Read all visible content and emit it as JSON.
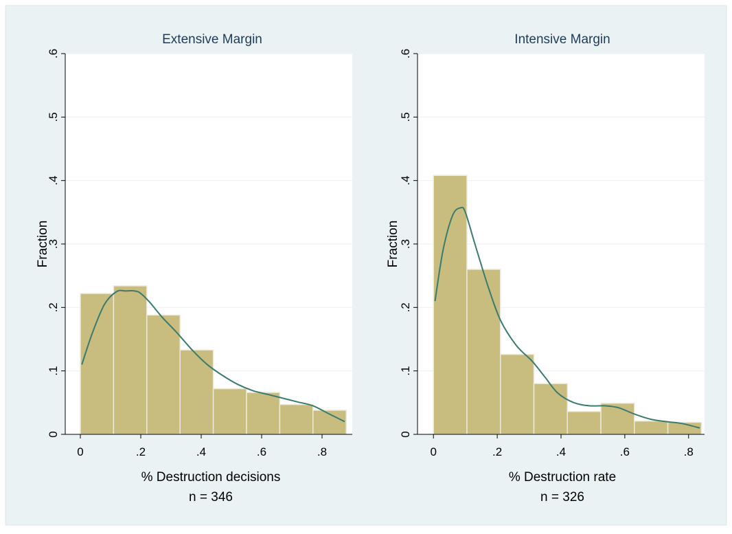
{
  "chart_data": [
    {
      "type": "bar",
      "title": "Extensive Margin",
      "xlabel": "% Destruction decisions",
      "ylabel": "Fraction",
      "note": "n = 346",
      "xlim": [
        -0.05,
        0.9
      ],
      "ylim": [
        0,
        0.6
      ],
      "xticks": [
        0,
        0.2,
        0.4,
        0.6,
        0.8
      ],
      "xtick_labels": [
        "0",
        ".2",
        ".4",
        ".6",
        ".8"
      ],
      "yticks": [
        0,
        0.1,
        0.2,
        0.3,
        0.4,
        0.5,
        0.6
      ],
      "ytick_labels": [
        "0",
        ".1",
        ".2",
        ".3",
        ".4",
        ".5",
        ".6"
      ],
      "grid": true,
      "bar_color": "#c8bd7e",
      "curve_color": "#3b7a6e",
      "bins": [
        {
          "x0": 0.0,
          "x1": 0.11,
          "value": 0.222
        },
        {
          "x0": 0.11,
          "x1": 0.22,
          "value": 0.234
        },
        {
          "x0": 0.22,
          "x1": 0.33,
          "value": 0.188
        },
        {
          "x0": 0.33,
          "x1": 0.44,
          "value": 0.133
        },
        {
          "x0": 0.44,
          "x1": 0.55,
          "value": 0.072
        },
        {
          "x0": 0.55,
          "x1": 0.66,
          "value": 0.066
        },
        {
          "x0": 0.66,
          "x1": 0.77,
          "value": 0.047
        },
        {
          "x0": 0.77,
          "x1": 0.88,
          "value": 0.038
        }
      ],
      "density_curve": {
        "x": [
          0.005,
          0.04,
          0.08,
          0.12,
          0.15,
          0.18,
          0.2,
          0.23,
          0.27,
          0.32,
          0.37,
          0.42,
          0.47,
          0.52,
          0.57,
          0.62,
          0.67,
          0.72,
          0.77,
          0.82,
          0.875
        ],
        "y": [
          0.11,
          0.16,
          0.205,
          0.225,
          0.226,
          0.226,
          0.222,
          0.208,
          0.185,
          0.16,
          0.133,
          0.11,
          0.093,
          0.079,
          0.069,
          0.063,
          0.057,
          0.051,
          0.045,
          0.033,
          0.02
        ]
      }
    },
    {
      "type": "bar",
      "title": "Intensive Margin",
      "xlabel": "% Destruction rate",
      "ylabel": "Fraction",
      "note": "n = 326",
      "xlim": [
        -0.05,
        0.85
      ],
      "ylim": [
        0,
        0.6
      ],
      "xticks": [
        0,
        0.2,
        0.4,
        0.6,
        0.8
      ],
      "xtick_labels": [
        "0",
        ".2",
        ".4",
        ".6",
        ".8"
      ],
      "yticks": [
        0,
        0.1,
        0.2,
        0.3,
        0.4,
        0.5,
        0.6
      ],
      "ytick_labels": [
        "0",
        ".1",
        ".2",
        ".3",
        ".4",
        ".5",
        ".6"
      ],
      "grid": true,
      "bar_color": "#c8bd7e",
      "curve_color": "#3b7a6e",
      "bins": [
        {
          "x0": 0.0,
          "x1": 0.105,
          "value": 0.408
        },
        {
          "x0": 0.105,
          "x1": 0.21,
          "value": 0.26
        },
        {
          "x0": 0.21,
          "x1": 0.315,
          "value": 0.126
        },
        {
          "x0": 0.315,
          "x1": 0.42,
          "value": 0.08
        },
        {
          "x0": 0.42,
          "x1": 0.525,
          "value": 0.036
        },
        {
          "x0": 0.525,
          "x1": 0.63,
          "value": 0.049
        },
        {
          "x0": 0.63,
          "x1": 0.735,
          "value": 0.021
        },
        {
          "x0": 0.735,
          "x1": 0.84,
          "value": 0.019
        }
      ],
      "density_curve": {
        "x": [
          0.005,
          0.03,
          0.06,
          0.085,
          0.1,
          0.13,
          0.17,
          0.21,
          0.26,
          0.31,
          0.35,
          0.39,
          0.44,
          0.49,
          0.54,
          0.58,
          0.63,
          0.68,
          0.73,
          0.78,
          0.835
        ],
        "y": [
          0.21,
          0.29,
          0.345,
          0.357,
          0.35,
          0.3,
          0.235,
          0.18,
          0.14,
          0.115,
          0.09,
          0.065,
          0.05,
          0.045,
          0.045,
          0.042,
          0.032,
          0.024,
          0.02,
          0.017,
          0.01
        ]
      }
    }
  ]
}
